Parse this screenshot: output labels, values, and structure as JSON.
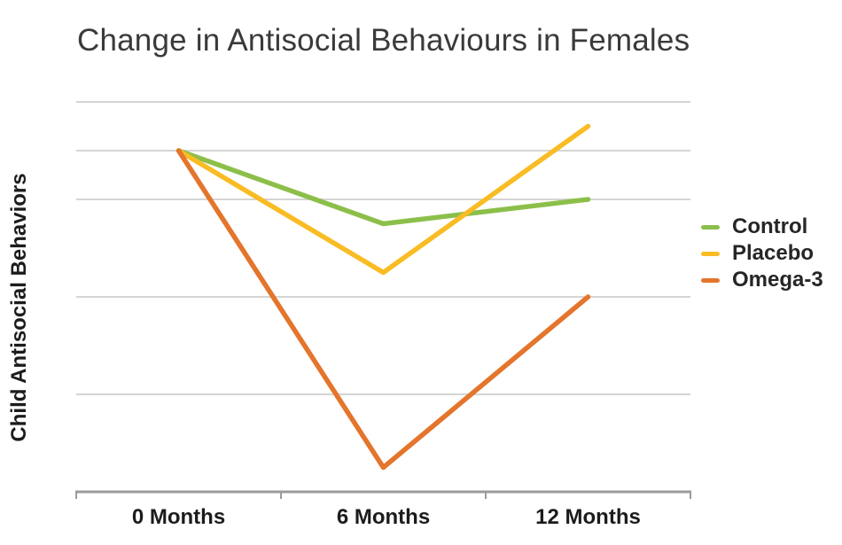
{
  "colors": {
    "background": "#ffffff",
    "gridline": "#d5d5d5",
    "axis": "#9b9b9b",
    "title_text": "#3a3a3a",
    "label_text": "#1c1c1c",
    "legend_text": "#262626",
    "control_green": "#8cbf4a",
    "placebo_yellow": "#f9bc24",
    "omega3_orange": "#e4752c"
  },
  "chart_data": {
    "type": "line",
    "title": "Change in Antisocial Behaviours in Females",
    "xlabel": "",
    "ylabel": "Child Antisocial Behaviors",
    "categories": [
      "0 Months",
      "6 Months",
      "12 Months"
    ],
    "series": [
      {
        "name": "Control",
        "color": "#8cbf4a",
        "values": [
          7.0,
          5.5,
          6.0
        ]
      },
      {
        "name": "Placebo",
        "color": "#f9bc24",
        "values": [
          7.0,
          4.5,
          7.5
        ]
      },
      {
        "name": "Omega-3",
        "color": "#e4752c",
        "values": [
          7.0,
          0.5,
          4.0
        ]
      }
    ],
    "ylim": [
      0,
      8.4
    ],
    "yticks_labeled": false,
    "gridlines_y": [
      8.0,
      7.0,
      6.0,
      4.0,
      2.0
    ],
    "grid": "horizontal",
    "legend_position": "right",
    "legend_entries": [
      "Control",
      "Placebo",
      "Omega-3"
    ]
  }
}
